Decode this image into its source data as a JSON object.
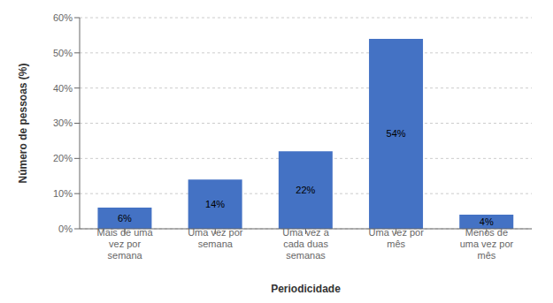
{
  "chart_data": {
    "type": "bar",
    "categories": [
      "Mais de uma\nvez por\nsemana",
      "Uma vez por\nsemana",
      "Uma vez a\ncada duas\nsemanas",
      "Uma vez por\nmês",
      "Menos de\numa vez por\nmês"
    ],
    "values": [
      6,
      14,
      22,
      54,
      4
    ],
    "value_labels": [
      "6%",
      "14%",
      "22%",
      "54%",
      "4%"
    ],
    "data_labels": true,
    "color": "#4472C4",
    "xlabel": "Periodicidade",
    "ylabel": "Número de pessoas (%)",
    "ylim": [
      0,
      60
    ],
    "yticks": [
      {
        "value": 0,
        "label": "0%"
      },
      {
        "value": 10,
        "label": "10%"
      },
      {
        "value": 20,
        "label": "20%"
      },
      {
        "value": 30,
        "label": "30%"
      },
      {
        "value": 40,
        "label": "40%"
      },
      {
        "value": 50,
        "label": "50%"
      },
      {
        "value": 60,
        "label": "60%"
      }
    ],
    "grid": true
  }
}
